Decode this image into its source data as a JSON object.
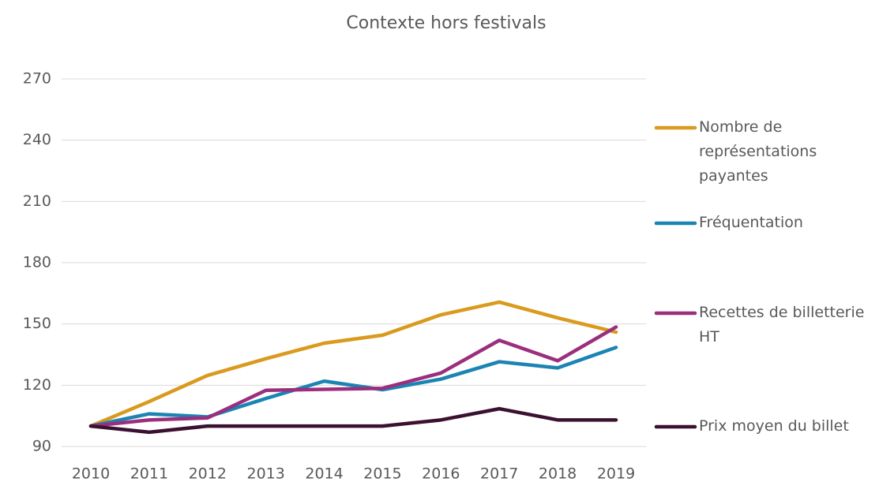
{
  "chart_data": {
    "type": "line",
    "title": "Contexte hors festivals",
    "x": [
      2010,
      2011,
      2012,
      2013,
      2014,
      2015,
      2016,
      2017,
      2018,
      2019
    ],
    "xlim": [
      2010,
      2019
    ],
    "ylim": [
      90,
      270
    ],
    "yticks": [
      90,
      120,
      150,
      180,
      210,
      240,
      270
    ],
    "grid": true,
    "legend": "right",
    "series": [
      {
        "name": "Nombre de représentations payantes",
        "color": "#d99a1e",
        "values": [
          100,
          112,
          124.8,
          133,
          140.6,
          144.5,
          154.5,
          160.7,
          153,
          146
        ]
      },
      {
        "name": "Fréquentation",
        "color": "#1b84b3",
        "values": [
          100,
          106,
          104.5,
          113.5,
          122,
          117.8,
          123,
          131.5,
          128.5,
          138.5
        ]
      },
      {
        "name": "Recettes de billetterie HT",
        "color": "#9b2f7d",
        "values": [
          100,
          103,
          104,
          117.5,
          118,
          118.5,
          126,
          142,
          132,
          148.5
        ]
      },
      {
        "name": "Prix moyen du billet",
        "color": "#3b1131",
        "values": [
          100,
          97,
          100,
          100,
          100,
          100,
          103,
          108.5,
          103,
          103
        ]
      }
    ]
  }
}
